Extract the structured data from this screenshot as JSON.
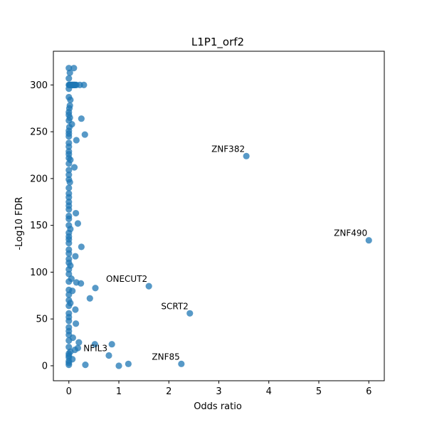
{
  "chart_data": {
    "type": "scatter",
    "title": "L1P1_orf2",
    "xlabel": "Odds ratio",
    "ylabel": "-Log10 FDR",
    "xlim": [
      -0.31,
      6.31
    ],
    "ylim": [
      -16,
      336
    ],
    "xticks": [
      0,
      1,
      2,
      3,
      4,
      5,
      6
    ],
    "yticks": [
      0,
      50,
      100,
      150,
      200,
      250,
      300
    ],
    "grid": false,
    "marker_color": "#1f77b4",
    "marker_alpha": 0.75,
    "points": [
      {
        "x": 0.0,
        "y": 318
      },
      {
        "x": 0.02,
        "y": 313
      },
      {
        "x": 0.1,
        "y": 318
      },
      {
        "x": 0.0,
        "y": 307
      },
      {
        "x": 0.0,
        "y": 300
      },
      {
        "x": 0.01,
        "y": 300
      },
      {
        "x": 0.02,
        "y": 300
      },
      {
        "x": 0.03,
        "y": 300
      },
      {
        "x": 0.04,
        "y": 300
      },
      {
        "x": 0.05,
        "y": 300
      },
      {
        "x": 0.06,
        "y": 300
      },
      {
        "x": 0.07,
        "y": 300
      },
      {
        "x": 0.08,
        "y": 300
      },
      {
        "x": 0.09,
        "y": 300
      },
      {
        "x": 0.1,
        "y": 300
      },
      {
        "x": 0.11,
        "y": 300
      },
      {
        "x": 0.12,
        "y": 300
      },
      {
        "x": 0.13,
        "y": 300
      },
      {
        "x": 0.15,
        "y": 300
      },
      {
        "x": 0.22,
        "y": 300
      },
      {
        "x": 0.3,
        "y": 300
      },
      {
        "x": 0.0,
        "y": 296
      },
      {
        "x": 0.0,
        "y": 287
      },
      {
        "x": 0.03,
        "y": 284
      },
      {
        "x": 0.02,
        "y": 278
      },
      {
        "x": 0.01,
        "y": 275
      },
      {
        "x": 0.0,
        "y": 271
      },
      {
        "x": 0.0,
        "y": 268
      },
      {
        "x": 0.02,
        "y": 265
      },
      {
        "x": 0.25,
        "y": 264
      },
      {
        "x": 0.0,
        "y": 262
      },
      {
        "x": 0.06,
        "y": 258
      },
      {
        "x": 0.01,
        "y": 255
      },
      {
        "x": 0.0,
        "y": 251
      },
      {
        "x": 0.0,
        "y": 248
      },
      {
        "x": 0.32,
        "y": 247
      },
      {
        "x": 0.0,
        "y": 245
      },
      {
        "x": 0.15,
        "y": 241
      },
      {
        "x": 0.0,
        "y": 238
      },
      {
        "x": 0.0,
        "y": 234
      },
      {
        "x": 0.0,
        "y": 229
      },
      {
        "x": 0.0,
        "y": 226
      },
      {
        "x": 0.0,
        "y": 222
      },
      {
        "x": 0.03,
        "y": 220
      },
      {
        "x": 0.0,
        "y": 216
      },
      {
        "x": 0.11,
        "y": 212
      },
      {
        "x": 0.0,
        "y": 209
      },
      {
        "x": 0.0,
        "y": 204
      },
      {
        "x": 0.0,
        "y": 199
      },
      {
        "x": 0.02,
        "y": 196
      },
      {
        "x": 0.0,
        "y": 190
      },
      {
        "x": 0.0,
        "y": 184
      },
      {
        "x": 0.0,
        "y": 180
      },
      {
        "x": 0.0,
        "y": 175
      },
      {
        "x": 0.0,
        "y": 171
      },
      {
        "x": 0.0,
        "y": 167
      },
      {
        "x": 0.14,
        "y": 163
      },
      {
        "x": 0.0,
        "y": 160
      },
      {
        "x": 0.0,
        "y": 157
      },
      {
        "x": 0.18,
        "y": 152
      },
      {
        "x": 0.0,
        "y": 150
      },
      {
        "x": 0.03,
        "y": 146
      },
      {
        "x": 0.0,
        "y": 142
      },
      {
        "x": 0.0,
        "y": 138
      },
      {
        "x": 0.0,
        "y": 135
      },
      {
        "x": 0.0,
        "y": 131
      },
      {
        "x": 0.25,
        "y": 127
      },
      {
        "x": 0.0,
        "y": 124
      },
      {
        "x": 0.0,
        "y": 120
      },
      {
        "x": 0.13,
        "y": 117
      },
      {
        "x": 0.0,
        "y": 114
      },
      {
        "x": 0.0,
        "y": 110
      },
      {
        "x": 0.03,
        "y": 107
      },
      {
        "x": 0.0,
        "y": 103
      },
      {
        "x": 0.0,
        "y": 98
      },
      {
        "x": 0.05,
        "y": 93
      },
      {
        "x": 0.0,
        "y": 90
      },
      {
        "x": 0.15,
        "y": 89
      },
      {
        "x": 0.24,
        "y": 88
      },
      {
        "x": 0.53,
        "y": 83
      },
      {
        "x": 0.0,
        "y": 81
      },
      {
        "x": 0.07,
        "y": 80
      },
      {
        "x": 0.0,
        "y": 76
      },
      {
        "x": 0.42,
        "y": 72
      },
      {
        "x": 0.0,
        "y": 70
      },
      {
        "x": 0.03,
        "y": 67
      },
      {
        "x": 0.0,
        "y": 64
      },
      {
        "x": 0.13,
        "y": 60
      },
      {
        "x": 0.0,
        "y": 56
      },
      {
        "x": 0.0,
        "y": 52
      },
      {
        "x": 0.0,
        "y": 48
      },
      {
        "x": 0.14,
        "y": 45
      },
      {
        "x": 0.0,
        "y": 41
      },
      {
        "x": 0.0,
        "y": 37
      },
      {
        "x": 0.0,
        "y": 33
      },
      {
        "x": 0.08,
        "y": 30
      },
      {
        "x": 0.0,
        "y": 27
      },
      {
        "x": 0.2,
        "y": 25
      },
      {
        "x": 0.52,
        "y": 23
      },
      {
        "x": 0.86,
        "y": 23
      },
      {
        "x": 0.0,
        "y": 20
      },
      {
        "x": 0.18,
        "y": 19
      },
      {
        "x": 0.12,
        "y": 17
      },
      {
        "x": 0.03,
        "y": 15
      },
      {
        "x": 0.0,
        "y": 13
      },
      {
        "x": 0.0,
        "y": 11
      },
      {
        "x": 0.8,
        "y": 11
      },
      {
        "x": 0.0,
        "y": 9
      },
      {
        "x": 0.07,
        "y": 7
      },
      {
        "x": 0.0,
        "y": 5
      },
      {
        "x": 0.0,
        "y": 3
      },
      {
        "x": 0.0,
        "y": 1
      },
      {
        "x": 0.33,
        "y": 1
      },
      {
        "x": 1.0,
        "y": 0
      },
      {
        "x": 1.19,
        "y": 2
      },
      {
        "x": 1.6,
        "y": 85
      },
      {
        "x": 2.25,
        "y": 2
      },
      {
        "x": 2.42,
        "y": 56
      },
      {
        "x": 3.55,
        "y": 224
      },
      {
        "x": 6.0,
        "y": 134
      }
    ],
    "annotations": [
      {
        "text": "ZNF382",
        "x": 3.55,
        "y": 224
      },
      {
        "text": "ZNF490",
        "x": 6.0,
        "y": 134
      },
      {
        "text": "ONECUT2",
        "x": 1.6,
        "y": 85
      },
      {
        "text": "SCRT2",
        "x": 2.42,
        "y": 56
      },
      {
        "text": "NFIL3",
        "x": 0.8,
        "y": 11
      },
      {
        "text": "ZNF85",
        "x": 2.25,
        "y": 2
      }
    ]
  }
}
